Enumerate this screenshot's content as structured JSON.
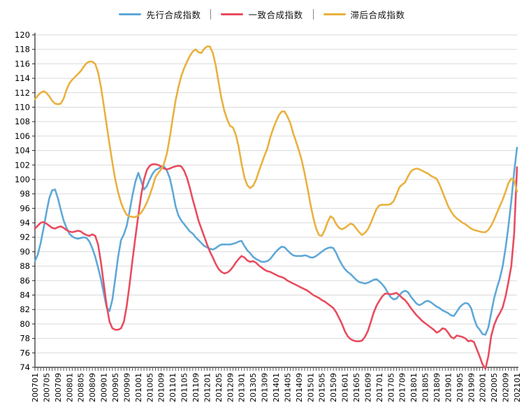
{
  "chart_data": {
    "type": "line",
    "title": "",
    "xlabel": "",
    "ylabel": "",
    "ylim": [
      74,
      120
    ],
    "y_tick_step": 2,
    "y_tick_labels": [
      "120",
      "118",
      "116",
      "114",
      "112",
      "110",
      "108",
      "106",
      "104",
      "102",
      "100",
      "98",
      "96",
      "94",
      "92",
      "90",
      "88",
      "86",
      "84",
      "82",
      "80",
      "78",
      "76",
      "74"
    ],
    "grid": "horizontal",
    "grid_color": "#d9d9d9",
    "axis_color": "#262626",
    "background": "#ffffff",
    "legend_position": "top-center",
    "legend_separator": "|",
    "x_label_rotation": -90,
    "x_tick_labels_shown": [
      "200701",
      "200705",
      "200709",
      "200801",
      "200805",
      "200809",
      "200901",
      "200905",
      "200909",
      "201001",
      "201005",
      "201009",
      "201101",
      "201105",
      "201109",
      "201201",
      "201205",
      "201209",
      "201301",
      "201305",
      "201309",
      "201401",
      "201405",
      "201409",
      "201501",
      "201505",
      "201509",
      "201601",
      "201605",
      "201609",
      "201701",
      "201705",
      "201709",
      "201801",
      "201805",
      "201809",
      "201901",
      "201905",
      "201909",
      "202001",
      "202005",
      "202009",
      "202101"
    ],
    "months": [
      "200701",
      "200702",
      "200703",
      "200704",
      "200705",
      "200706",
      "200707",
      "200708",
      "200709",
      "200710",
      "200711",
      "200712",
      "200801",
      "200802",
      "200803",
      "200804",
      "200805",
      "200806",
      "200807",
      "200808",
      "200809",
      "200810",
      "200811",
      "200812",
      "200901",
      "200902",
      "200903",
      "200904",
      "200905",
      "200906",
      "200907",
      "200908",
      "200909",
      "200910",
      "200911",
      "200912",
      "201001",
      "201002",
      "201003",
      "201004",
      "201005",
      "201006",
      "201007",
      "201008",
      "201009",
      "201010",
      "201011",
      "201012",
      "201101",
      "201102",
      "201103",
      "201104",
      "201105",
      "201106",
      "201107",
      "201108",
      "201109",
      "201110",
      "201111",
      "201112",
      "201201",
      "201202",
      "201203",
      "201204",
      "201205",
      "201206",
      "201207",
      "201208",
      "201209",
      "201210",
      "201211",
      "201212",
      "201301",
      "201302",
      "201303",
      "201304",
      "201305",
      "201306",
      "201307",
      "201308",
      "201309",
      "201310",
      "201311",
      "201312",
      "201401",
      "201402",
      "201403",
      "201404",
      "201405",
      "201406",
      "201407",
      "201408",
      "201409",
      "201410",
      "201411",
      "201412",
      "201501",
      "201502",
      "201503",
      "201504",
      "201505",
      "201506",
      "201507",
      "201508",
      "201509",
      "201510",
      "201511",
      "201512",
      "201601",
      "201602",
      "201603",
      "201604",
      "201605",
      "201606",
      "201607",
      "201608",
      "201609",
      "201610",
      "201611",
      "201612",
      "201701",
      "201702",
      "201703",
      "201704",
      "201705",
      "201706",
      "201707",
      "201708",
      "201709",
      "201710",
      "201711",
      "201712",
      "201801",
      "201802",
      "201803",
      "201804",
      "201805",
      "201806",
      "201807",
      "201808",
      "201809",
      "201810",
      "201811",
      "201812",
      "201901",
      "201902",
      "201903",
      "201904",
      "201905",
      "201906",
      "201907",
      "201908",
      "201909",
      "201910",
      "201911",
      "201912",
      "202001",
      "202002",
      "202003",
      "202004",
      "202005",
      "202006",
      "202007",
      "202008",
      "202009",
      "202010",
      "202011",
      "202012",
      "202101"
    ],
    "series": [
      {
        "name": "先行合成指数",
        "color": "#5fa8d8",
        "values": [
          88.7,
          89.6,
          91.2,
          93.2,
          95.4,
          97.4,
          98.5,
          98.6,
          97.4,
          95.8,
          94.3,
          93.3,
          92.5,
          92.1,
          91.9,
          91.8,
          91.9,
          92.0,
          91.9,
          91.4,
          90.5,
          89.3,
          87.8,
          86.2,
          84.2,
          82.3,
          81.8,
          83.4,
          86.3,
          89.3,
          91.6,
          92.4,
          93.6,
          95.6,
          97.8,
          99.7,
          100.9,
          99.8,
          98.6,
          99.1,
          100.0,
          100.8,
          101.3,
          101.5,
          101.7,
          101.8,
          101.2,
          100.2,
          98.4,
          96.3,
          95.0,
          94.3,
          93.8,
          93.3,
          92.8,
          92.5,
          92.0,
          91.6,
          91.2,
          90.8,
          90.6,
          90.4,
          90.3,
          90.5,
          90.8,
          91.0,
          91.0,
          91.0,
          91.0,
          91.1,
          91.2,
          91.4,
          91.5,
          90.8,
          90.2,
          89.8,
          89.3,
          89.0,
          88.8,
          88.6,
          88.6,
          88.7,
          89.0,
          89.5,
          90.0,
          90.4,
          90.7,
          90.6,
          90.2,
          89.8,
          89.5,
          89.4,
          89.4,
          89.4,
          89.5,
          89.4,
          89.2,
          89.2,
          89.4,
          89.7,
          90.0,
          90.3,
          90.5,
          90.6,
          90.5,
          89.8,
          88.9,
          88.2,
          87.6,
          87.2,
          86.9,
          86.5,
          86.1,
          85.8,
          85.7,
          85.6,
          85.7,
          85.9,
          86.1,
          86.2,
          85.9,
          85.5,
          85.0,
          84.3,
          83.7,
          83.4,
          83.5,
          84.0,
          84.4,
          84.6,
          84.4,
          83.8,
          83.3,
          82.8,
          82.6,
          82.8,
          83.1,
          83.2,
          83.0,
          82.7,
          82.4,
          82.2,
          81.9,
          81.7,
          81.5,
          81.2,
          81.1,
          81.7,
          82.3,
          82.7,
          82.9,
          82.8,
          82.2,
          80.8,
          79.7,
          79.2,
          78.6,
          78.5,
          79.5,
          81.5,
          83.5,
          85.0,
          86.3,
          88.0,
          90.5,
          93.5,
          97.0,
          101.0,
          104.4
        ]
      },
      {
        "name": "一致合成指数",
        "color": "#e84c5f",
        "values": [
          93.2,
          93.6,
          94.0,
          94.1,
          93.9,
          93.6,
          93.3,
          93.2,
          93.4,
          93.5,
          93.3,
          93.0,
          92.8,
          92.7,
          92.8,
          92.9,
          92.8,
          92.5,
          92.3,
          92.2,
          92.4,
          92.2,
          91.0,
          88.5,
          85.5,
          82.5,
          80.3,
          79.4,
          79.2,
          79.2,
          79.4,
          80.3,
          82.5,
          85.5,
          88.8,
          92.0,
          95.0,
          97.8,
          100.0,
          101.3,
          101.9,
          102.1,
          102.1,
          102.0,
          101.8,
          101.5,
          101.4,
          101.5,
          101.7,
          101.8,
          101.9,
          101.8,
          101.2,
          100.2,
          98.8,
          97.2,
          95.8,
          94.3,
          93.2,
          92.1,
          91.0,
          90.0,
          89.2,
          88.3,
          87.6,
          87.2,
          87.0,
          87.1,
          87.4,
          87.9,
          88.5,
          89.0,
          89.4,
          89.2,
          88.8,
          88.6,
          88.7,
          88.5,
          88.1,
          87.8,
          87.5,
          87.3,
          87.2,
          87.0,
          86.8,
          86.6,
          86.5,
          86.3,
          86.0,
          85.8,
          85.6,
          85.4,
          85.2,
          85.0,
          84.8,
          84.6,
          84.3,
          84.0,
          83.8,
          83.6,
          83.3,
          83.1,
          82.8,
          82.5,
          82.2,
          81.6,
          80.8,
          80.0,
          79.0,
          78.3,
          77.9,
          77.7,
          77.6,
          77.6,
          77.7,
          78.2,
          79.0,
          80.2,
          81.5,
          82.5,
          83.2,
          83.8,
          84.2,
          84.2,
          84.1,
          84.2,
          84.3,
          84.0,
          83.6,
          83.3,
          82.8,
          82.2,
          81.7,
          81.2,
          80.8,
          80.4,
          80.1,
          79.8,
          79.5,
          79.2,
          78.8,
          79.0,
          79.4,
          79.3,
          78.8,
          78.2,
          78.0,
          78.4,
          78.3,
          78.2,
          78.0,
          77.6,
          77.7,
          77.5,
          76.5,
          75.5,
          74.4,
          73.8,
          75.5,
          78.3,
          79.8,
          80.8,
          81.5,
          82.3,
          83.8,
          85.8,
          88.0,
          92.5,
          101.7
        ]
      },
      {
        "name": "滞后合成指数",
        "color": "#e9b13e",
        "values": [
          111.1,
          111.6,
          112.0,
          112.2,
          112.0,
          111.5,
          110.9,
          110.5,
          110.4,
          110.5,
          111.2,
          112.4,
          113.3,
          113.8,
          114.2,
          114.6,
          115.0,
          115.6,
          116.1,
          116.3,
          116.3,
          116.0,
          114.8,
          112.8,
          110.2,
          107.5,
          104.8,
          102.3,
          100.0,
          98.2,
          96.8,
          95.8,
          95.1,
          94.9,
          94.8,
          94.8,
          95.0,
          95.4,
          96.0,
          96.8,
          97.8,
          99.0,
          100.3,
          100.9,
          101.4,
          102.2,
          103.6,
          105.8,
          108.4,
          110.9,
          112.8,
          114.3,
          115.4,
          116.3,
          117.1,
          117.7,
          118.0,
          117.6,
          117.5,
          118.1,
          118.4,
          118.4,
          117.5,
          115.8,
          113.4,
          111.2,
          109.5,
          108.3,
          107.4,
          107.2,
          106.2,
          104.5,
          102.2,
          100.3,
          99.2,
          98.8,
          99.1,
          99.9,
          101.1,
          102.2,
          103.3,
          104.3,
          105.8,
          107.0,
          108.0,
          108.9,
          109.4,
          109.4,
          108.7,
          107.8,
          106.4,
          105.2,
          104.0,
          102.6,
          100.8,
          98.8,
          96.6,
          94.7,
          93.2,
          92.3,
          92.2,
          93.0,
          94.1,
          94.9,
          94.6,
          93.8,
          93.3,
          93.1,
          93.3,
          93.6,
          93.9,
          93.7,
          93.2,
          92.7,
          92.3,
          92.6,
          93.1,
          93.9,
          94.9,
          95.9,
          96.4,
          96.5,
          96.5,
          96.5,
          96.6,
          97.0,
          97.9,
          98.9,
          99.3,
          99.6,
          100.4,
          101.1,
          101.4,
          101.5,
          101.4,
          101.2,
          101.0,
          100.8,
          100.5,
          100.3,
          100.1,
          99.3,
          98.3,
          97.3,
          96.3,
          95.6,
          95.0,
          94.6,
          94.3,
          94.0,
          93.8,
          93.5,
          93.2,
          93.0,
          92.9,
          92.8,
          92.7,
          92.7,
          93.0,
          93.6,
          94.4,
          95.4,
          96.3,
          97.2,
          98.3,
          99.5,
          100.1,
          99.9,
          98.3
        ]
      }
    ]
  }
}
